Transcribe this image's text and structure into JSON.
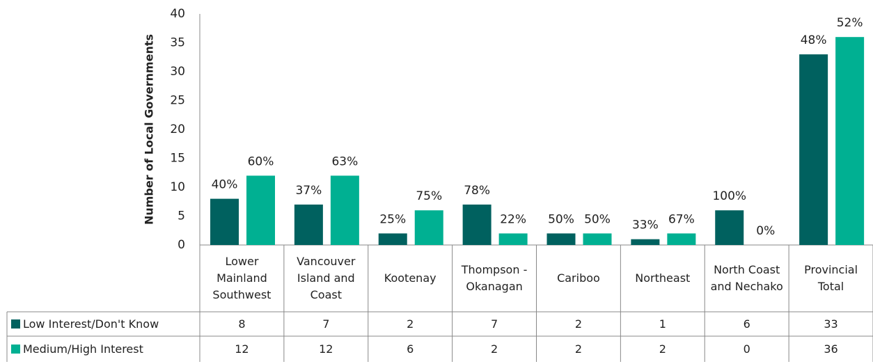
{
  "chart_data": {
    "type": "bar",
    "y_axis_label": "Number of Local Governments",
    "categories": [
      "Lower Mainland Southwest",
      "Vancouver Island and Coast",
      "Kootenay",
      "Thompson -Okanagan",
      "Cariboo",
      "Northeast",
      "North Coast and Nechako",
      "Provincial Total"
    ],
    "series": [
      {
        "name": "Low Interest/Don't Know",
        "color": "#00615f",
        "values": [
          8,
          7,
          2,
          7,
          2,
          1,
          6,
          33
        ],
        "percent_labels": [
          "40%",
          "37%",
          "25%",
          "78%",
          "50%",
          "33%",
          "100%",
          "48%"
        ]
      },
      {
        "name": "Medium/High Interest",
        "color": "#00b092",
        "values": [
          12,
          12,
          6,
          2,
          2,
          2,
          0,
          36
        ],
        "percent_labels": [
          "60%",
          "63%",
          "75%",
          "22%",
          "50%",
          "67%",
          "0%",
          "52%"
        ]
      }
    ],
    "ylim": [
      0,
      40
    ],
    "yticks": [
      0,
      5,
      10,
      15,
      20,
      25,
      30,
      35,
      40
    ],
    "grid": false,
    "data_table": true
  }
}
